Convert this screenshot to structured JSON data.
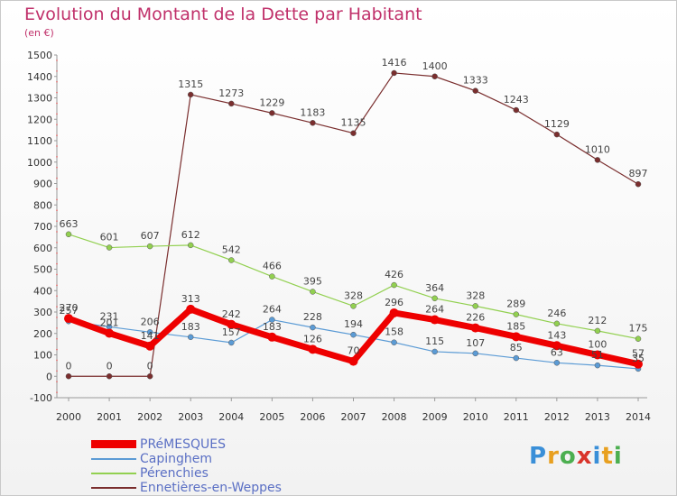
{
  "title": "Evolution du Montant de la Dette par Habitant",
  "subtitle": "(en €)",
  "logo_text": "Proxiti",
  "logo_colors": [
    "#3a8fd8",
    "#e8a020",
    "#4caf50",
    "#d9342b",
    "#3a8fd8",
    "#e8a020",
    "#4caf50"
  ],
  "chart_data": {
    "type": "line",
    "title": "Evolution du Montant de la Dette par Habitant",
    "subtitle": "(en €)",
    "xlabel": "",
    "ylabel": "",
    "ylim": [
      -100,
      1500
    ],
    "ytick_step": 100,
    "grid": false,
    "legend_position": "bottom-left",
    "x": [
      "2000",
      "2001",
      "2002",
      "2003",
      "2004",
      "2005",
      "2006",
      "2007",
      "2008",
      "2009",
      "2010",
      "2011",
      "2012",
      "2013",
      "2014"
    ],
    "series": [
      {
        "name": "PRéMESQUES",
        "color": "#ee0000",
        "values": [
          270,
          201,
          141,
          313,
          242,
          183,
          126,
          70,
          296,
          264,
          226,
          185,
          143,
          100,
          57
        ]
      },
      {
        "name": "Capinghem",
        "color": "#5b9bd5",
        "values": [
          257,
          231,
          206,
          183,
          157,
          264,
          228,
          194,
          158,
          115,
          107,
          85,
          63,
          51,
          35
        ]
      },
      {
        "name": "Pérenchies",
        "color": "#92d050",
        "values": [
          663,
          601,
          607,
          612,
          542,
          466,
          395,
          328,
          426,
          364,
          328,
          289,
          246,
          212,
          175
        ]
      },
      {
        "name": "Ennetières-en-Weppes",
        "color": "#7a2e2e",
        "values": [
          0,
          0,
          0,
          1315,
          1273,
          1229,
          1183,
          1135,
          1416,
          1400,
          1333,
          1243,
          1129,
          1010,
          897
        ]
      }
    ]
  }
}
